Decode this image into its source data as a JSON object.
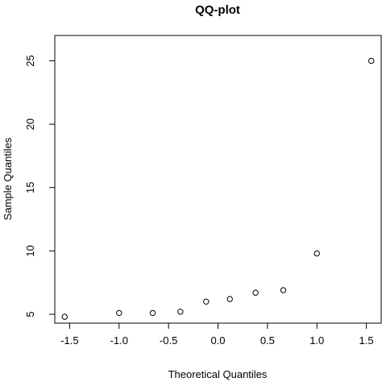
{
  "chart_data": {
    "type": "scatter",
    "title": "QQ-plot",
    "xlabel": "Theoretical Quantiles",
    "ylabel": "Sample Quantiles",
    "xlim": [
      -1.65,
      1.65
    ],
    "ylim": [
      4.3,
      27.0
    ],
    "xticks": [
      -1.5,
      -1.0,
      -0.5,
      0.0,
      0.5,
      1.0,
      1.5
    ],
    "xtick_labels": [
      "-1.5",
      "-1.0",
      "-0.5",
      "0.0",
      "0.5",
      "1.0",
      "1.5"
    ],
    "yticks": [
      5,
      10,
      15,
      20,
      25
    ],
    "ytick_labels": [
      "5",
      "10",
      "15",
      "20",
      "25"
    ],
    "grid": false,
    "marker": "open-circle",
    "points": [
      {
        "x": -1.55,
        "y": 4.8
      },
      {
        "x": -1.0,
        "y": 5.1
      },
      {
        "x": -0.66,
        "y": 5.1
      },
      {
        "x": -0.38,
        "y": 5.2
      },
      {
        "x": -0.12,
        "y": 6.0
      },
      {
        "x": 0.12,
        "y": 6.2
      },
      {
        "x": 0.38,
        "y": 6.7
      },
      {
        "x": 0.66,
        "y": 6.9
      },
      {
        "x": 1.0,
        "y": 9.8
      },
      {
        "x": 1.55,
        "y": 25.0
      }
    ]
  }
}
